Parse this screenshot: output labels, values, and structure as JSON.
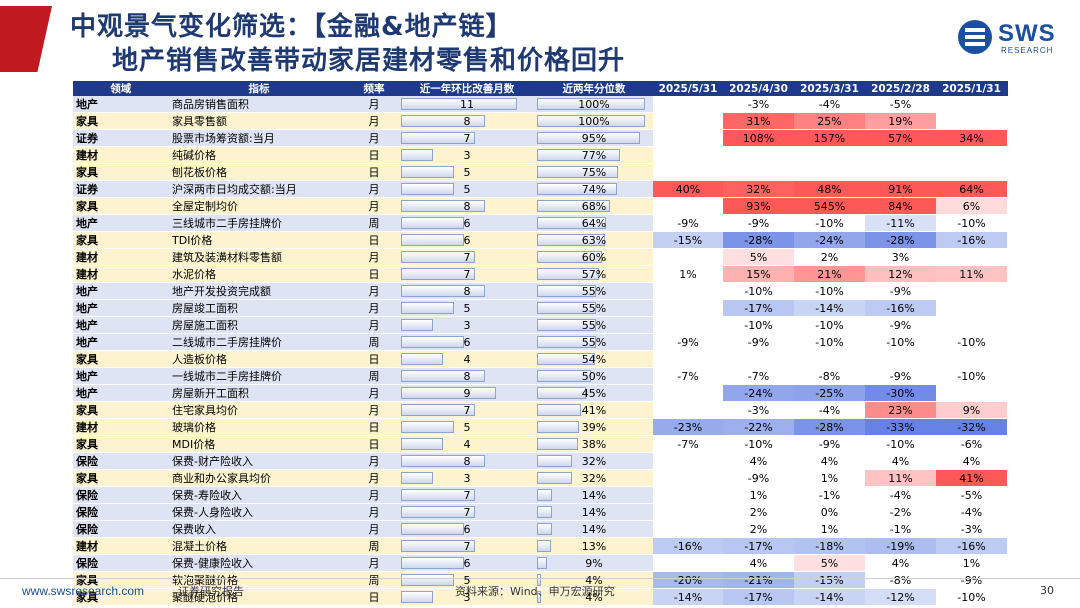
{
  "title": {
    "line1": "中观景气变化筛选：【金融&地产链】",
    "line2": "地产销售改善带动家居建材零售和价格回升"
  },
  "logo": {
    "text": "SWS",
    "sub": "RESEARCH"
  },
  "table": {
    "headers": [
      "领域",
      "指标",
      "频率",
      "近一年环比改善月数",
      "近两年分位数",
      "2025/5/31",
      "2025/4/30",
      "2025/3/31",
      "2025/2/28",
      "2025/1/31"
    ],
    "max_improve_months": 12,
    "rows": [
      {
        "domain": "地产",
        "indicator": "商品房销售面积",
        "freq": "月",
        "months": 11,
        "pct": "100%",
        "pct_val": 100,
        "v": [
          "",
          "-3%",
          "-4%",
          "-5%",
          ""
        ]
      },
      {
        "domain": "家具",
        "indicator": "家具零售额",
        "freq": "月",
        "months": 8,
        "pct": "100%",
        "pct_val": 100,
        "v": [
          "",
          "31%",
          "25%",
          "19%",
          ""
        ]
      },
      {
        "domain": "证券",
        "indicator": "股票市场筹资额:当月",
        "freq": "月",
        "months": 7,
        "pct": "95%",
        "pct_val": 95,
        "v": [
          "",
          "108%",
          "157%",
          "57%",
          "34%"
        ]
      },
      {
        "domain": "建材",
        "indicator": "纯碱价格",
        "freq": "日",
        "months": 3,
        "pct": "77%",
        "pct_val": 77,
        "v": [
          "",
          "",
          "",
          "",
          ""
        ]
      },
      {
        "domain": "家具",
        "indicator": "刨花板价格",
        "freq": "日",
        "months": 5,
        "pct": "75%",
        "pct_val": 75,
        "v": [
          "",
          "",
          "",
          "",
          ""
        ]
      },
      {
        "domain": "证券",
        "indicator": "沪深两市日均成交额:当月",
        "freq": "月",
        "months": 5,
        "pct": "74%",
        "pct_val": 74,
        "v": [
          "40%",
          "32%",
          "48%",
          "91%",
          "64%"
        ]
      },
      {
        "domain": "家具",
        "indicator": "全屋定制均价",
        "freq": "月",
        "months": 8,
        "pct": "68%",
        "pct_val": 68,
        "v": [
          "",
          "93%",
          "545%",
          "84%",
          "6%"
        ]
      },
      {
        "domain": "地产",
        "indicator": "三线城市二手房挂牌价",
        "freq": "周",
        "months": 6,
        "pct": "64%",
        "pct_val": 64,
        "v": [
          "-9%",
          "-9%",
          "-10%",
          "-11%",
          "-10%"
        ]
      },
      {
        "domain": "家具",
        "indicator": "TDI价格",
        "freq": "日",
        "months": 6,
        "pct": "63%",
        "pct_val": 63,
        "v": [
          "-15%",
          "-28%",
          "-24%",
          "-28%",
          "-16%"
        ]
      },
      {
        "domain": "建材",
        "indicator": "建筑及装潢材料零售额",
        "freq": "月",
        "months": 7,
        "pct": "60%",
        "pct_val": 60,
        "v": [
          "",
          "5%",
          "2%",
          "3%",
          ""
        ]
      },
      {
        "domain": "建材",
        "indicator": "水泥价格",
        "freq": "日",
        "months": 7,
        "pct": "57%",
        "pct_val": 57,
        "v": [
          "1%",
          "15%",
          "21%",
          "12%",
          "11%"
        ]
      },
      {
        "domain": "地产",
        "indicator": "地产开发投资完成额",
        "freq": "月",
        "months": 8,
        "pct": "55%",
        "pct_val": 55,
        "v": [
          "",
          "-10%",
          "-10%",
          "-9%",
          ""
        ]
      },
      {
        "domain": "地产",
        "indicator": "房屋竣工面积",
        "freq": "月",
        "months": 5,
        "pct": "55%",
        "pct_val": 55,
        "v": [
          "",
          "-17%",
          "-14%",
          "-16%",
          ""
        ]
      },
      {
        "domain": "地产",
        "indicator": "房屋施工面积",
        "freq": "月",
        "months": 3,
        "pct": "55%",
        "pct_val": 55,
        "v": [
          "",
          "-10%",
          "-10%",
          "-9%",
          ""
        ]
      },
      {
        "domain": "地产",
        "indicator": "二线城市二手房挂牌价",
        "freq": "周",
        "months": 6,
        "pct": "55%",
        "pct_val": 55,
        "v": [
          "-9%",
          "-9%",
          "-10%",
          "-10%",
          "-10%"
        ]
      },
      {
        "domain": "家具",
        "indicator": "人造板价格",
        "freq": "日",
        "months": 4,
        "pct": "54%",
        "pct_val": 54,
        "v": [
          "",
          "",
          "",
          "",
          ""
        ]
      },
      {
        "domain": "地产",
        "indicator": "一线城市二手房挂牌价",
        "freq": "周",
        "months": 8,
        "pct": "50%",
        "pct_val": 50,
        "v": [
          "-7%",
          "-7%",
          "-8%",
          "-9%",
          "-10%"
        ]
      },
      {
        "domain": "地产",
        "indicator": "房屋新开工面积",
        "freq": "月",
        "months": 9,
        "pct": "45%",
        "pct_val": 45,
        "v": [
          "",
          "-24%",
          "-25%",
          "-30%",
          ""
        ]
      },
      {
        "domain": "家具",
        "indicator": "住宅家具均价",
        "freq": "月",
        "months": 7,
        "pct": "41%",
        "pct_val": 41,
        "v": [
          "",
          "-3%",
          "-4%",
          "23%",
          "9%"
        ]
      },
      {
        "domain": "建材",
        "indicator": "玻璃价格",
        "freq": "日",
        "months": 5,
        "pct": "39%",
        "pct_val": 39,
        "v": [
          "-23%",
          "-22%",
          "-28%",
          "-33%",
          "-32%"
        ]
      },
      {
        "domain": "家具",
        "indicator": "MDI价格",
        "freq": "日",
        "months": 4,
        "pct": "38%",
        "pct_val": 38,
        "v": [
          "-7%",
          "-10%",
          "-9%",
          "-10%",
          "-6%"
        ]
      },
      {
        "domain": "保险",
        "indicator": "保费-财产险收入",
        "freq": "月",
        "months": 8,
        "pct": "32%",
        "pct_val": 32,
        "v": [
          "",
          "4%",
          "4%",
          "4%",
          "4%"
        ]
      },
      {
        "domain": "家具",
        "indicator": "商业和办公家具均价",
        "freq": "月",
        "months": 3,
        "pct": "32%",
        "pct_val": 32,
        "v": [
          "",
          "-9%",
          "1%",
          "11%",
          "41%"
        ]
      },
      {
        "domain": "保险",
        "indicator": "保费-寿险收入",
        "freq": "月",
        "months": 7,
        "pct": "14%",
        "pct_val": 14,
        "v": [
          "",
          "1%",
          "-1%",
          "-4%",
          "-5%"
        ]
      },
      {
        "domain": "保险",
        "indicator": "保费-人身险收入",
        "freq": "月",
        "months": 7,
        "pct": "14%",
        "pct_val": 14,
        "v": [
          "",
          "2%",
          "0%",
          "-2%",
          "-4%"
        ]
      },
      {
        "domain": "保险",
        "indicator": "保费收入",
        "freq": "月",
        "months": 6,
        "pct": "14%",
        "pct_val": 14,
        "v": [
          "",
          "2%",
          "1%",
          "-1%",
          "-3%"
        ]
      },
      {
        "domain": "建材",
        "indicator": "混凝土价格",
        "freq": "周",
        "months": 7,
        "pct": "13%",
        "pct_val": 13,
        "v": [
          "-16%",
          "-17%",
          "-18%",
          "-19%",
          "-16%"
        ]
      },
      {
        "domain": "保险",
        "indicator": "保费-健康险收入",
        "freq": "月",
        "months": 6,
        "pct": "9%",
        "pct_val": 9,
        "v": [
          "",
          "4%",
          "5%",
          "4%",
          "1%"
        ]
      },
      {
        "domain": "家具",
        "indicator": "软泡聚醚价格",
        "freq": "周",
        "months": 5,
        "pct": "4%",
        "pct_val": 4,
        "v": [
          "-20%",
          "-21%",
          "-15%",
          "-8%",
          "-9%"
        ]
      },
      {
        "domain": "家具",
        "indicator": "聚醚硬泡价格",
        "freq": "日",
        "months": 3,
        "pct": "4%",
        "pct_val": 4,
        "v": [
          "-14%",
          "-17%",
          "-14%",
          "-12%",
          "-10%"
        ]
      }
    ]
  },
  "footer": {
    "url": "www.swsresearch.com",
    "report": "证券研究报告",
    "source": "资料来源：Wind、申万宏源研究",
    "page": "30"
  }
}
